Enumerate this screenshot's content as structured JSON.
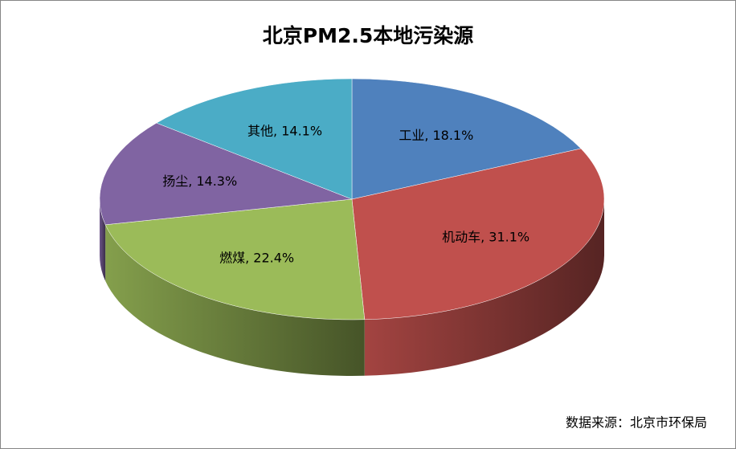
{
  "chart_data": {
    "type": "pie3d",
    "title": "北京PM2.5本地污染源",
    "values": [
      18.1,
      31.1,
      22.4,
      14.3,
      14.1
    ],
    "value_labels": [
      "工业, 18.1%",
      "机动车, 31.1%",
      "燃煤, 22.4%",
      "扬尘, 14.3%",
      "其他, 14.1%"
    ],
    "colors": [
      "#4f81bd",
      "#c0504d",
      "#9bbb59",
      "#8064a2",
      "#4bacc6"
    ],
    "source": "数据来源：北京市环保局"
  }
}
